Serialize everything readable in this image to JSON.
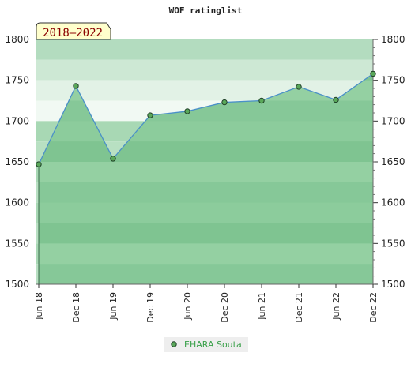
{
  "chart_data": {
    "type": "area",
    "title": "WOF ratinglist",
    "period_badge": "2018–2022",
    "x": [
      "Jun 18",
      "Dec 18",
      "Jun 19",
      "Dec 19",
      "Jun 20",
      "Dec 20",
      "Jun 21",
      "Dec 21",
      "Jun 22",
      "Dec 22"
    ],
    "series": [
      {
        "name": "EHARA Souta",
        "values": [
          1647,
          1743,
          1654,
          1707,
          1712,
          1723,
          1725,
          1742,
          1726,
          1758
        ]
      }
    ],
    "ylim": [
      1500,
      1800
    ],
    "yticks": [
      1500,
      1550,
      1600,
      1650,
      1700,
      1750,
      1800
    ],
    "xlabel": "",
    "ylabel": "",
    "grid": true,
    "legend": "bottom-center",
    "colors": {
      "line": "#4a90c8",
      "marker": "#5aa85a",
      "fill": "#7cc48c",
      "legend_text": "#3aa04a",
      "badge_bg": "#ffffcc",
      "badge_text": "#8b0000"
    }
  }
}
